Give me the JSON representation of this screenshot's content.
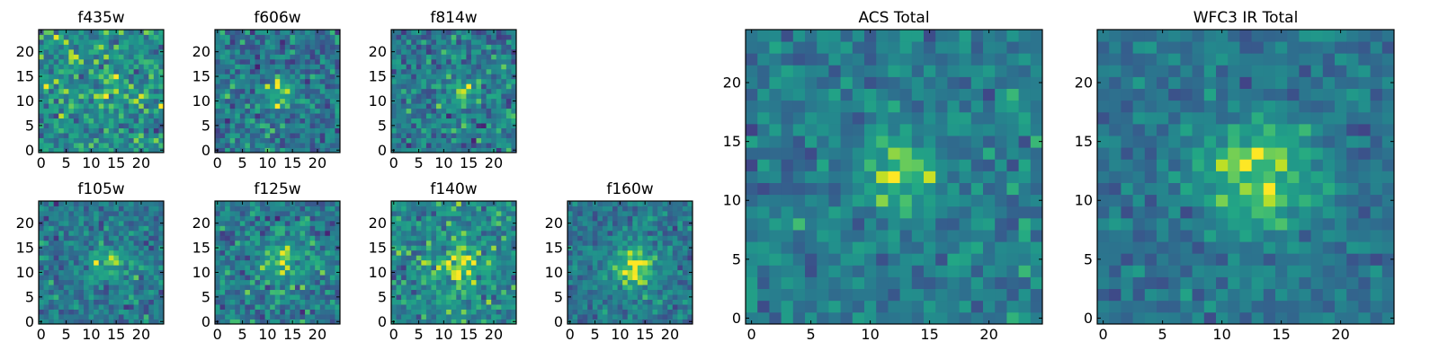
{
  "chart_data": {
    "type": "heatmap",
    "colormap": "viridis",
    "pixels_per_side": 25,
    "panels": [
      {
        "id": "f435w",
        "title": "f435w",
        "xticks": [
          0,
          5,
          10,
          15,
          20
        ],
        "yticks": [
          0,
          5,
          10,
          15,
          20
        ],
        "source_center": [
          13,
          11
        ],
        "source_width": 2.2,
        "source_amplitude": 0.18,
        "base": 0.62,
        "noise": 0.3,
        "seed": 11
      },
      {
        "id": "f606w",
        "title": "f606w",
        "xticks": [
          0,
          5,
          10,
          15,
          20
        ],
        "yticks": [
          0,
          5,
          10,
          15,
          20
        ],
        "source_center": [
          12.5,
          11.5
        ],
        "source_width": 1.8,
        "source_amplitude": 0.4,
        "base": 0.5,
        "noise": 0.3,
        "seed": 23
      },
      {
        "id": "f814w",
        "title": "f814w",
        "xticks": [
          0,
          5,
          10,
          15,
          20
        ],
        "yticks": [
          0,
          5,
          10,
          15,
          20
        ],
        "source_center": [
          14,
          12
        ],
        "source_width": 2.0,
        "source_amplitude": 0.35,
        "base": 0.52,
        "noise": 0.3,
        "seed": 37
      },
      {
        "id": "f105w",
        "title": "f105w",
        "xticks": [
          0,
          5,
          10,
          15,
          20
        ],
        "yticks": [
          0,
          5,
          10,
          15,
          20
        ],
        "source_center": [
          13.5,
          12
        ],
        "source_width": 2.5,
        "source_amplitude": 0.35,
        "base": 0.5,
        "noise": 0.26,
        "seed": 41
      },
      {
        "id": "f125w",
        "title": "f125w",
        "xticks": [
          0,
          5,
          10,
          15,
          20
        ],
        "yticks": [
          0,
          5,
          10,
          15,
          20
        ],
        "source_center": [
          13,
          12
        ],
        "source_width": 3.0,
        "source_amplitude": 0.3,
        "base": 0.52,
        "noise": 0.28,
        "seed": 53
      },
      {
        "id": "f140w",
        "title": "f140w",
        "xticks": [
          0,
          5,
          10,
          15,
          20
        ],
        "yticks": [
          0,
          5,
          10,
          15,
          20
        ],
        "source_center": [
          13,
          11
        ],
        "source_width": 3.5,
        "source_amplitude": 0.3,
        "base": 0.58,
        "noise": 0.28,
        "seed": 67
      },
      {
        "id": "f160w",
        "title": "f160w",
        "xticks": [
          0,
          5,
          10,
          15,
          20
        ],
        "yticks": [
          0,
          5,
          10,
          15,
          20
        ],
        "source_center": [
          13,
          11
        ],
        "source_width": 3.2,
        "source_amplitude": 0.45,
        "base": 0.5,
        "noise": 0.22,
        "seed": 79
      },
      {
        "id": "acs_total",
        "title": "ACS Total",
        "xticks": [
          0,
          5,
          10,
          15,
          20
        ],
        "yticks": [
          0,
          5,
          10,
          15,
          20
        ],
        "source_center": [
          12.5,
          12
        ],
        "source_width": 2.2,
        "source_amplitude": 0.4,
        "base": 0.52,
        "noise": 0.22,
        "seed": 83
      },
      {
        "id": "wfc3_ir_total",
        "title": "WFC3 IR Total",
        "xticks": [
          0,
          5,
          10,
          15,
          20
        ],
        "yticks": [
          0,
          5,
          10,
          15,
          20
        ],
        "source_center": [
          13,
          12
        ],
        "source_width": 3.5,
        "source_amplitude": 0.42,
        "base": 0.48,
        "noise": 0.18,
        "seed": 97
      }
    ]
  }
}
